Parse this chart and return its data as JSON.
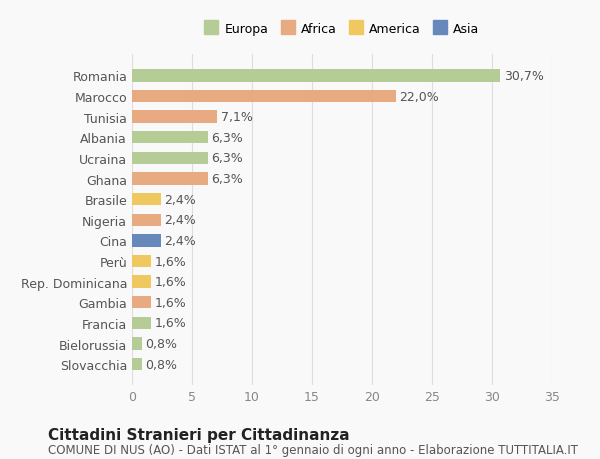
{
  "categories": [
    "Slovacchia",
    "Bielorussia",
    "Francia",
    "Gambia",
    "Rep. Dominicana",
    "Perù",
    "Cina",
    "Nigeria",
    "Brasile",
    "Ghana",
    "Ucraina",
    "Albania",
    "Tunisia",
    "Marocco",
    "Romania"
  ],
  "values": [
    0.8,
    0.8,
    1.6,
    1.6,
    1.6,
    1.6,
    2.4,
    2.4,
    2.4,
    6.3,
    6.3,
    6.3,
    7.1,
    22.0,
    30.7
  ],
  "labels": [
    "0,8%",
    "0,8%",
    "1,6%",
    "1,6%",
    "1,6%",
    "1,6%",
    "2,4%",
    "2,4%",
    "2,4%",
    "6,3%",
    "6,3%",
    "6,3%",
    "7,1%",
    "22,0%",
    "30,7%"
  ],
  "colors": [
    "#b5cc96",
    "#b5cc96",
    "#b5cc96",
    "#e8aa80",
    "#f0c860",
    "#f0c860",
    "#6688bb",
    "#e8aa80",
    "#f0c860",
    "#e8aa80",
    "#b5cc96",
    "#b5cc96",
    "#e8aa80",
    "#e8aa80",
    "#b5cc96"
  ],
  "legend_labels": [
    "Europa",
    "Africa",
    "America",
    "Asia"
  ],
  "legend_colors": [
    "#b5cc96",
    "#e8aa80",
    "#f0c860",
    "#6688bb"
  ],
  "title": "Cittadini Stranieri per Cittadinanza",
  "subtitle": "COMUNE DI NUS (AO) - Dati ISTAT al 1° gennaio di ogni anno - Elaborazione TUTTITALIA.IT",
  "xlim": [
    0,
    35
  ],
  "xticks": [
    0,
    5,
    10,
    15,
    20,
    25,
    30,
    35
  ],
  "background_color": "#f9f9f9",
  "grid_color": "#dddddd",
  "bar_height": 0.6,
  "label_fontsize": 9,
  "tick_fontsize": 9,
  "title_fontsize": 11,
  "subtitle_fontsize": 8.5
}
